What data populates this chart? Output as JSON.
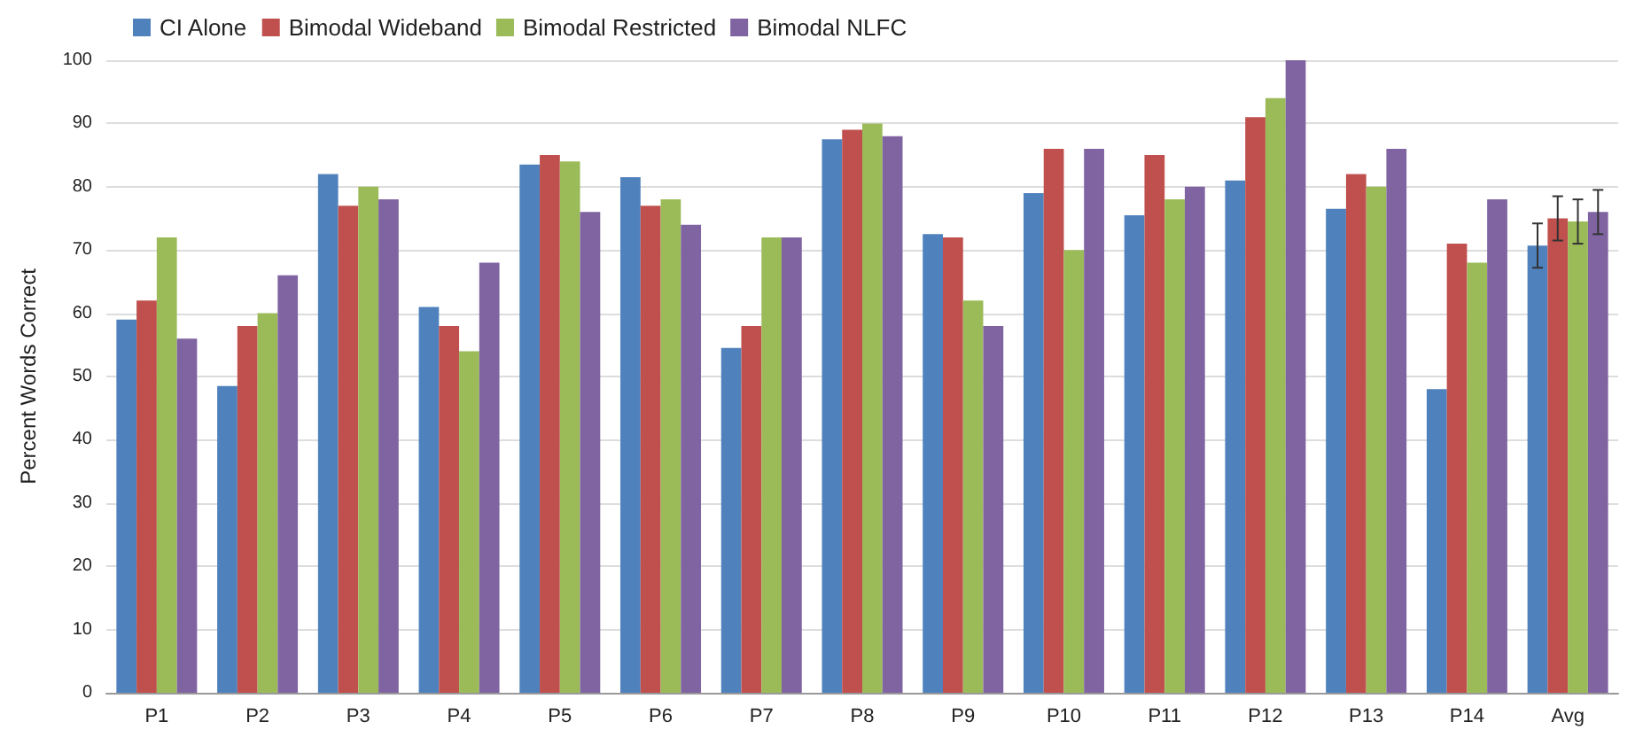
{
  "chart_data": {
    "type": "bar",
    "ylabel": "Percent Words Correct",
    "categories": [
      "P1",
      "P2",
      "P3",
      "P4",
      "P5",
      "P6",
      "P7",
      "P8",
      "P9",
      "P10",
      "P11",
      "P12",
      "P13",
      "P14",
      "Avg"
    ],
    "series": [
      {
        "name": "CI Alone",
        "color": "#4f81bd",
        "values": [
          59,
          48.5,
          82,
          61,
          83.5,
          81.5,
          54.5,
          87.5,
          72.5,
          79,
          75.5,
          81,
          76.5,
          48,
          70.7
        ],
        "errors": [
          null,
          null,
          null,
          null,
          null,
          null,
          null,
          null,
          null,
          null,
          null,
          null,
          null,
          null,
          3.5
        ]
      },
      {
        "name": "Bimodal Wideband",
        "color": "#c0504d",
        "values": [
          62,
          58,
          77,
          58,
          85,
          77,
          58,
          89,
          72,
          86,
          85,
          91,
          82,
          71,
          75
        ],
        "errors": [
          null,
          null,
          null,
          null,
          null,
          null,
          null,
          null,
          null,
          null,
          null,
          null,
          null,
          null,
          3.5
        ]
      },
      {
        "name": "Bimodal Restricted",
        "color": "#9bbb59",
        "values": [
          72,
          60,
          80,
          54,
          84,
          78,
          72,
          90,
          62,
          70,
          78,
          94,
          80,
          68,
          74.5
        ],
        "errors": [
          null,
          null,
          null,
          null,
          null,
          null,
          null,
          null,
          null,
          null,
          null,
          null,
          null,
          null,
          3.5
        ]
      },
      {
        "name": "Bimodal NLFC",
        "color": "#8064a2",
        "values": [
          56,
          66,
          78,
          68,
          76,
          74,
          72,
          88,
          58,
          86,
          80,
          100,
          86,
          78,
          76
        ],
        "errors": [
          null,
          null,
          null,
          null,
          null,
          null,
          null,
          null,
          null,
          null,
          null,
          null,
          null,
          null,
          3.5
        ]
      }
    ],
    "ylim": [
      0,
      100
    ],
    "yticks": [
      0,
      10,
      20,
      30,
      40,
      50,
      60,
      70,
      80,
      90,
      100
    ],
    "grid": "y",
    "legend": "top left"
  }
}
